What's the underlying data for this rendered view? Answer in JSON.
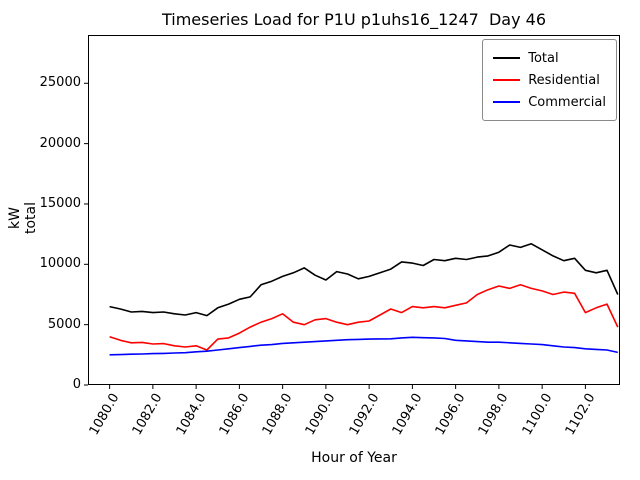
{
  "chart_data": {
    "type": "line",
    "title": "Timeseries Load for P1U p1uhs16_1247  Day 46",
    "xlabel": "Hour of Year",
    "ylabel": "kW total",
    "xlim": [
      1079.0,
      1103.6
    ],
    "ylim": [
      0,
      29000
    ],
    "grid": false,
    "legend_position": "upper right",
    "xticks": [
      1080,
      1082,
      1084,
      1086,
      1088,
      1090,
      1092,
      1094,
      1096,
      1098,
      1100,
      1102
    ],
    "xtick_labels": [
      "1080.0",
      "1082.0",
      "1084.0",
      "1086.0",
      "1088.0",
      "1090.0",
      "1092.0",
      "1094.0",
      "1096.0",
      "1098.0",
      "1100.0",
      "1102.0"
    ],
    "yticks": [
      0,
      5000,
      10000,
      15000,
      20000,
      25000
    ],
    "ytick_labels": [
      "0",
      "5000",
      "10000",
      "15000",
      "20000",
      "25000"
    ],
    "x": [
      1080.0,
      1080.5,
      1081.0,
      1081.5,
      1082.0,
      1082.5,
      1083.0,
      1083.5,
      1084.0,
      1084.5,
      1085.0,
      1085.5,
      1086.0,
      1086.5,
      1087.0,
      1087.5,
      1088.0,
      1088.5,
      1089.0,
      1089.5,
      1090.0,
      1090.5,
      1091.0,
      1091.5,
      1092.0,
      1092.5,
      1093.0,
      1093.5,
      1094.0,
      1094.5,
      1095.0,
      1095.5,
      1096.0,
      1096.5,
      1097.0,
      1097.5,
      1098.0,
      1098.5,
      1099.0,
      1099.5,
      1100.0,
      1100.5,
      1101.0,
      1101.5,
      1102.0,
      1102.5,
      1103.0,
      1103.5
    ],
    "series": [
      {
        "name": "Total",
        "color": "#000000",
        "values": [
          6500,
          6300,
          6050,
          6100,
          6000,
          6050,
          5900,
          5800,
          6000,
          5750,
          6400,
          6700,
          7100,
          7300,
          8300,
          8600,
          9000,
          9300,
          9700,
          9100,
          8700,
          9400,
          9200,
          8800,
          9000,
          9300,
          9600,
          10200,
          10100,
          9900,
          10400,
          10300,
          10500,
          10400,
          10600,
          10700,
          11000,
          11600,
          11400,
          11700,
          11200,
          10700,
          10300,
          10500,
          9500,
          9300,
          9500,
          7500
        ]
      },
      {
        "name": "Residential",
        "color": "#ff0000",
        "values": [
          4000,
          3700,
          3500,
          3530,
          3400,
          3430,
          3250,
          3150,
          3250,
          2900,
          3800,
          3900,
          4300,
          4800,
          5200,
          5500,
          5900,
          5200,
          5000,
          5400,
          5500,
          5200,
          5000,
          5200,
          5300,
          5800,
          6300,
          6000,
          6500,
          6400,
          6500,
          6400,
          6600,
          6800,
          7500,
          7900,
          8200,
          8000,
          8300,
          8000,
          7800,
          7500,
          7700,
          7600,
          6000,
          6400,
          6700,
          4800
        ]
      },
      {
        "name": "Commercial",
        "color": "#0000ff",
        "values": [
          2500,
          2520,
          2550,
          2570,
          2600,
          2620,
          2650,
          2680,
          2750,
          2800,
          2900,
          3000,
          3100,
          3200,
          3300,
          3350,
          3450,
          3500,
          3550,
          3600,
          3650,
          3700,
          3750,
          3780,
          3800,
          3820,
          3830,
          3900,
          3950,
          3920,
          3900,
          3850,
          3700,
          3650,
          3600,
          3550,
          3550,
          3500,
          3450,
          3400,
          3350,
          3250,
          3150,
          3100,
          3000,
          2950,
          2900,
          2700
        ]
      }
    ]
  }
}
